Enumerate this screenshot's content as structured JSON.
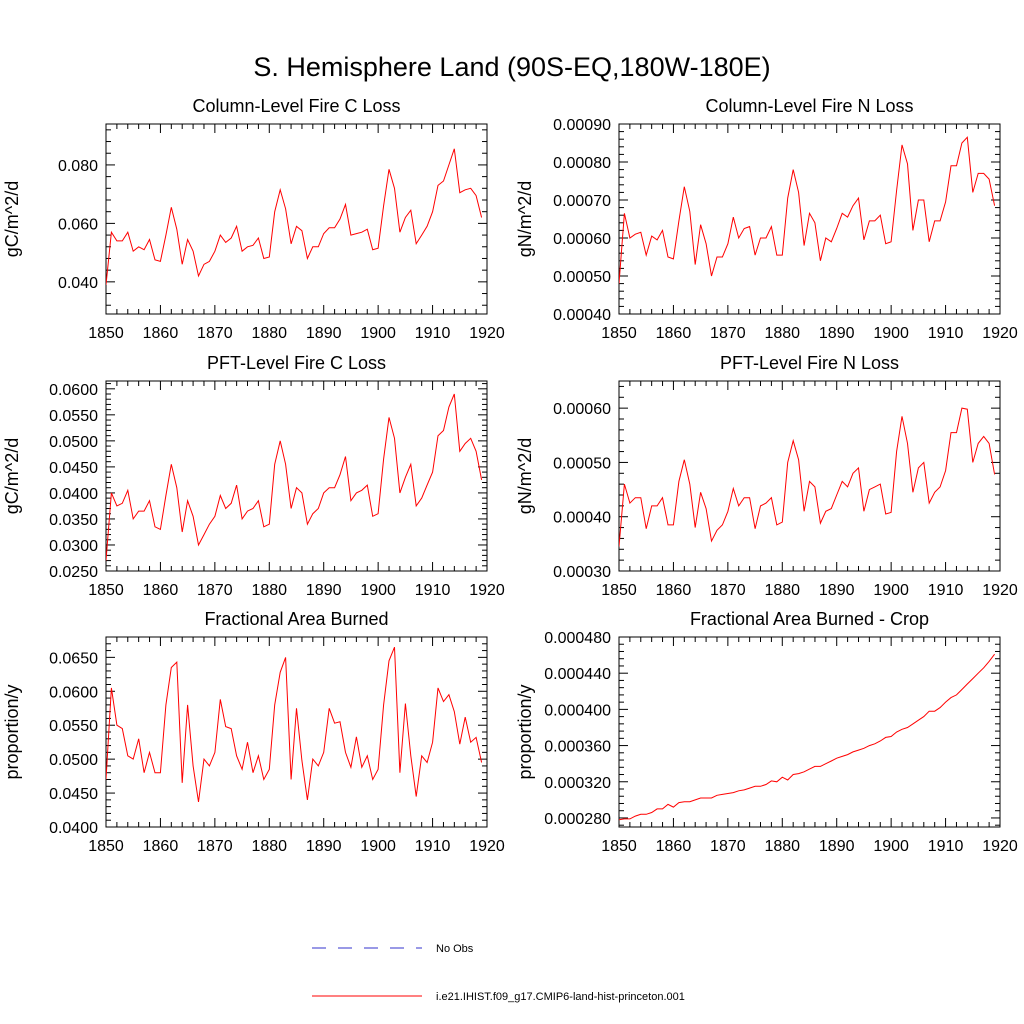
{
  "title": "S. Hemisphere Land (90S-EQ,180W-180E)",
  "colors": {
    "series": "#ff0000",
    "obs": "#3333cc",
    "axis": "#000000"
  },
  "legend": {
    "obs_label": "No Obs",
    "model_label": "i.e21.IHIST.f09_g17.CMIP6-land-hist-princeton.001"
  },
  "chart_data": [
    {
      "type": "line",
      "title": "Column-Level Fire C Loss",
      "ylabel": "gC/m^2/d",
      "xlim": [
        1850,
        1920
      ],
      "ylim": [
        0.029,
        0.094
      ],
      "xticks": [
        1850,
        1860,
        1870,
        1880,
        1890,
        1900,
        1910,
        1920
      ],
      "yticks": [
        0.04,
        0.06,
        0.08
      ],
      "ytick_labels": [
        "0.040",
        "0.060",
        "0.080"
      ],
      "x_start": 1850,
      "values": [
        0.039,
        0.057,
        0.054,
        0.054,
        0.057,
        0.0505,
        0.052,
        0.051,
        0.0545,
        0.0475,
        0.047,
        0.056,
        0.0655,
        0.058,
        0.046,
        0.0545,
        0.0505,
        0.042,
        0.046,
        0.047,
        0.0505,
        0.056,
        0.0535,
        0.055,
        0.059,
        0.0505,
        0.052,
        0.0525,
        0.055,
        0.048,
        0.0485,
        0.064,
        0.0715,
        0.065,
        0.053,
        0.059,
        0.0575,
        0.048,
        0.052,
        0.052,
        0.0565,
        0.0585,
        0.0585,
        0.0615,
        0.0665,
        0.056,
        0.0565,
        0.057,
        0.058,
        0.051,
        0.0515,
        0.066,
        0.0785,
        0.072,
        0.057,
        0.062,
        0.0645,
        0.053,
        0.056,
        0.059,
        0.064,
        0.073,
        0.0745,
        0.08,
        0.0855,
        0.0705,
        0.0715,
        0.072,
        0.0695,
        0.062
      ]
    },
    {
      "type": "line",
      "title": "Column-Level Fire N Loss",
      "ylabel": "gN/m^2/d",
      "xlim": [
        1850,
        1920
      ],
      "ylim": [
        0.0004,
        0.0009
      ],
      "xticks": [
        1850,
        1860,
        1870,
        1880,
        1890,
        1900,
        1910,
        1920
      ],
      "yticks": [
        0.0004,
        0.0005,
        0.0006,
        0.0007,
        0.0008,
        0.0009
      ],
      "ytick_labels": [
        "0.00040",
        "0.00050",
        "0.00060",
        "0.00070",
        "0.00080",
        "0.00090"
      ],
      "x_start": 1850,
      "values": [
        0.00048,
        0.000665,
        0.0006,
        0.00061,
        0.000615,
        0.000555,
        0.000605,
        0.000595,
        0.00062,
        0.00055,
        0.000545,
        0.000645,
        0.000735,
        0.00067,
        0.00053,
        0.000635,
        0.000585,
        0.0005,
        0.00055,
        0.00055,
        0.000585,
        0.000655,
        0.0006,
        0.000625,
        0.00063,
        0.000555,
        0.0006,
        0.0006,
        0.00063,
        0.000555,
        0.000555,
        0.000705,
        0.00078,
        0.00072,
        0.00058,
        0.000665,
        0.00064,
        0.00054,
        0.0006,
        0.00059,
        0.000625,
        0.000665,
        0.000655,
        0.000685,
        0.000705,
        0.000595,
        0.000645,
        0.000645,
        0.00066,
        0.000585,
        0.00059,
        0.000725,
        0.000845,
        0.000795,
        0.00062,
        0.0007,
        0.0007,
        0.00059,
        0.000645,
        0.000645,
        0.000695,
        0.00079,
        0.00079,
        0.00085,
        0.000865,
        0.00072,
        0.00077,
        0.00077,
        0.000755,
        0.000685
      ]
    },
    {
      "type": "line",
      "title": "PFT-Level Fire C Loss",
      "ylabel": "gC/m^2/d",
      "xlim": [
        1850,
        1920
      ],
      "ylim": [
        0.025,
        0.0615
      ],
      "xticks": [
        1850,
        1860,
        1870,
        1880,
        1890,
        1900,
        1910,
        1920
      ],
      "yticks": [
        0.025,
        0.03,
        0.035,
        0.04,
        0.045,
        0.05,
        0.055,
        0.06
      ],
      "ytick_labels": [
        "0.0250",
        "0.0300",
        "0.0350",
        "0.0400",
        "0.0450",
        "0.0500",
        "0.0550",
        "0.0600"
      ],
      "x_start": 1850,
      "values": [
        0.027,
        0.04,
        0.0375,
        0.038,
        0.0405,
        0.035,
        0.0365,
        0.0365,
        0.0385,
        0.0335,
        0.033,
        0.0395,
        0.0455,
        0.041,
        0.0325,
        0.0385,
        0.0355,
        0.03,
        0.032,
        0.034,
        0.0355,
        0.0395,
        0.037,
        0.038,
        0.0415,
        0.035,
        0.0365,
        0.037,
        0.0385,
        0.0335,
        0.034,
        0.0455,
        0.05,
        0.0455,
        0.037,
        0.041,
        0.04,
        0.034,
        0.036,
        0.037,
        0.04,
        0.041,
        0.041,
        0.0435,
        0.047,
        0.0385,
        0.04,
        0.0405,
        0.0415,
        0.0355,
        0.036,
        0.0465,
        0.0545,
        0.0505,
        0.04,
        0.043,
        0.0455,
        0.0375,
        0.039,
        0.0415,
        0.044,
        0.051,
        0.052,
        0.0565,
        0.059,
        0.048,
        0.0495,
        0.0505,
        0.048,
        0.0425
      ]
    },
    {
      "type": "line",
      "title": "PFT-Level Fire N Loss",
      "ylabel": "gN/m^2/d",
      "xlim": [
        1850,
        1920
      ],
      "ylim": [
        0.0003,
        0.00065
      ],
      "xticks": [
        1850,
        1860,
        1870,
        1880,
        1890,
        1900,
        1910,
        1920
      ],
      "yticks": [
        0.0003,
        0.0004,
        0.0005,
        0.0006
      ],
      "ytick_labels": [
        "0.00030",
        "0.00040",
        "0.00050",
        "0.00060"
      ],
      "x_start": 1850,
      "values": [
        0.000345,
        0.00046,
        0.000425,
        0.000435,
        0.000435,
        0.000378,
        0.00042,
        0.00042,
        0.000435,
        0.000385,
        0.000385,
        0.000465,
        0.000505,
        0.00046,
        0.00038,
        0.000445,
        0.000415,
        0.000355,
        0.000375,
        0.000385,
        0.00041,
        0.000452,
        0.00042,
        0.000435,
        0.000435,
        0.000378,
        0.00042,
        0.000425,
        0.000435,
        0.000385,
        0.00039,
        0.0005,
        0.00054,
        0.000505,
        0.00041,
        0.000465,
        0.000455,
        0.000388,
        0.00041,
        0.000415,
        0.00044,
        0.000465,
        0.000455,
        0.00048,
        0.00049,
        0.00041,
        0.00045,
        0.000455,
        0.00046,
        0.000405,
        0.000408,
        0.00052,
        0.000585,
        0.000535,
        0.000445,
        0.00049,
        0.0005,
        0.000425,
        0.000445,
        0.000455,
        0.000485,
        0.000555,
        0.000555,
        0.0006,
        0.000598,
        0.0005,
        0.000535,
        0.000548,
        0.000535,
        0.000478
      ]
    },
    {
      "type": "line",
      "title": "Fractional Area Burned",
      "ylabel": "proportion/y",
      "xlim": [
        1850,
        1920
      ],
      "ylim": [
        0.04,
        0.068
      ],
      "xticks": [
        1850,
        1860,
        1870,
        1880,
        1890,
        1900,
        1910,
        1920
      ],
      "yticks": [
        0.04,
        0.045,
        0.05,
        0.055,
        0.06,
        0.065
      ],
      "ytick_labels": [
        "0.0400",
        "0.0450",
        "0.0500",
        "0.0550",
        "0.0600",
        "0.0650"
      ],
      "x_start": 1850,
      "values": [
        0.047,
        0.0605,
        0.055,
        0.0545,
        0.0505,
        0.05,
        0.053,
        0.048,
        0.051,
        0.048,
        0.048,
        0.058,
        0.0635,
        0.0643,
        0.0465,
        0.058,
        0.049,
        0.0437,
        0.05,
        0.049,
        0.051,
        0.0588,
        0.0548,
        0.0545,
        0.0505,
        0.0485,
        0.0525,
        0.048,
        0.0505,
        0.047,
        0.0485,
        0.058,
        0.0628,
        0.065,
        0.047,
        0.0575,
        0.0498,
        0.044,
        0.05,
        0.049,
        0.051,
        0.0575,
        0.0553,
        0.0555,
        0.051,
        0.0488,
        0.0533,
        0.0488,
        0.0505,
        0.047,
        0.0485,
        0.058,
        0.0645,
        0.0665,
        0.048,
        0.0582,
        0.0505,
        0.0445,
        0.0505,
        0.0495,
        0.0525,
        0.0605,
        0.0585,
        0.0595,
        0.057,
        0.0522,
        0.0562,
        0.0525,
        0.0532,
        0.0495
      ]
    },
    {
      "type": "line",
      "title": "Fractional Area Burned - Crop",
      "ylabel": "proportion/y",
      "xlim": [
        1850,
        1920
      ],
      "ylim": [
        0.00027,
        0.00048
      ],
      "xticks": [
        1850,
        1860,
        1870,
        1880,
        1890,
        1900,
        1910,
        1920
      ],
      "yticks": [
        0.00028,
        0.00032,
        0.00036,
        0.0004,
        0.00044,
        0.00048
      ],
      "ytick_labels": [
        "0.000280",
        "0.000320",
        "0.000360",
        "0.000400",
        "0.000440",
        "0.000480"
      ],
      "x_start": 1850,
      "values": [
        0.000278,
        0.000279,
        0.000279,
        0.000282,
        0.000284,
        0.000284,
        0.000286,
        0.00029,
        0.00029,
        0.000295,
        0.000292,
        0.000297,
        0.000298,
        0.000298,
        0.0003,
        0.000302,
        0.000302,
        0.000302,
        0.000305,
        0.000306,
        0.000307,
        0.000308,
        0.00031,
        0.000311,
        0.000313,
        0.000315,
        0.000315,
        0.000317,
        0.000321,
        0.00032,
        0.000325,
        0.000322,
        0.000328,
        0.000329,
        0.000331,
        0.000334,
        0.000337,
        0.000337,
        0.00034,
        0.000343,
        0.000346,
        0.000348,
        0.00035,
        0.000353,
        0.000355,
        0.000357,
        0.00036,
        0.000362,
        0.000365,
        0.000369,
        0.00037,
        0.000375,
        0.000378,
        0.00038,
        0.000384,
        0.000388,
        0.000392,
        0.000398,
        0.000398,
        0.000402,
        0.000408,
        0.000413,
        0.000416,
        0.000422,
        0.000428,
        0.000434,
        0.00044,
        0.000446,
        0.000453,
        0.000461
      ]
    }
  ]
}
